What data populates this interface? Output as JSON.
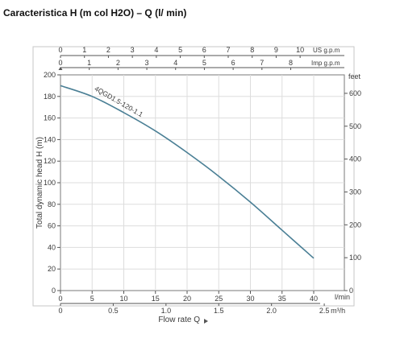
{
  "title": "Caracteristica H (m col H2O) – Q (l/ min)",
  "chart_data": {
    "type": "line",
    "series": [
      {
        "name": "4QGD1.5-120-1.1",
        "x": [
          0,
          5,
          10,
          15,
          20,
          25,
          30,
          35,
          40
        ],
        "y": [
          190,
          180,
          165,
          148,
          128,
          106,
          82,
          56,
          30
        ]
      }
    ],
    "x": {
      "label": "Flow rate Q",
      "unit": "l/min",
      "ticks": [
        0,
        5,
        10,
        15,
        20,
        25,
        30,
        35,
        40
      ],
      "range": [
        0,
        44
      ]
    },
    "y": {
      "label": "Total dynamic head H (m)",
      "ticks": [
        0,
        20,
        40,
        60,
        80,
        100,
        120,
        140,
        160,
        180,
        200
      ],
      "range": [
        0,
        200
      ]
    },
    "y_right": {
      "label": "feet",
      "ticks": [
        0,
        100,
        200,
        300,
        400,
        500,
        600
      ]
    },
    "x_top": {
      "label": "US g.p.m",
      "ticks": [
        0,
        1,
        2,
        3,
        4,
        5,
        6,
        7,
        8,
        9,
        10
      ]
    },
    "x_top2": {
      "label": "Imp g.p.m",
      "ticks": [
        0,
        1,
        2,
        3,
        4,
        5,
        6,
        7,
        8
      ]
    },
    "x_bottom2": {
      "label": "m³/h",
      "ticks": [
        "0",
        "0.5",
        "1.0",
        "1.5",
        "2.0",
        "2.5"
      ],
      "values": [
        0,
        0.5,
        1.0,
        1.5,
        2.0,
        2.5
      ]
    },
    "line_color": "#4a7f95",
    "grid": true
  }
}
